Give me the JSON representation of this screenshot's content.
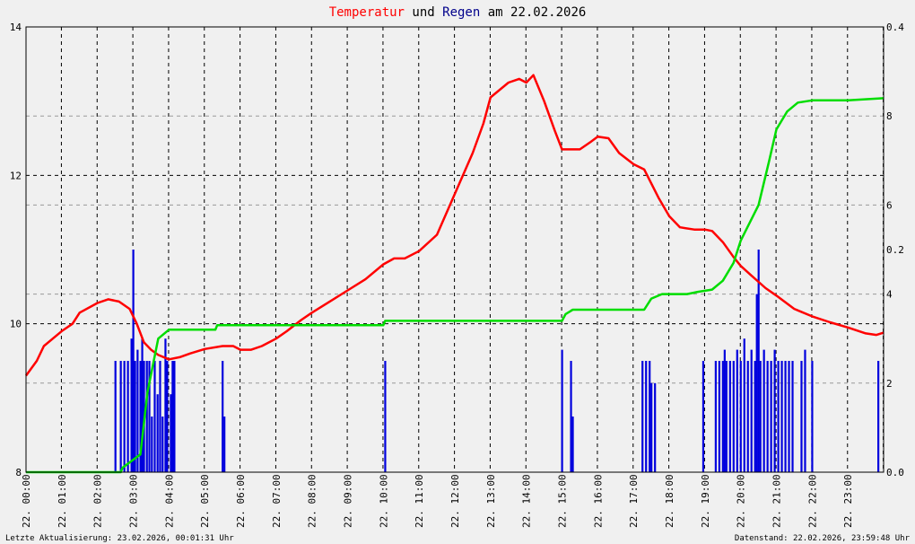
{
  "title": {
    "part1": "Temperatur",
    "part2": " und ",
    "part3": "Regen",
    "part4": " am 22.02.2026",
    "color_temp": "#ff0000",
    "color_rain": "#00008b",
    "color_text": "#000000"
  },
  "footer": {
    "left": "Letzte Aktualisierung: 23.02.2026, 00:01:31 Uhr",
    "right": "Datenstand: 22.02.2026, 23:59:48 Uhr"
  },
  "chart_data": {
    "type": "line",
    "x_unit": "hour of day",
    "x_ticks": [
      "22. 00:00",
      "22. 01:00",
      "22. 02:00",
      "22. 03:00",
      "22. 04:00",
      "22. 05:00",
      "22. 06:00",
      "22. 07:00",
      "22. 08:00",
      "22. 09:00",
      "22. 10:00",
      "22. 11:00",
      "22. 12:00",
      "22. 13:00",
      "22. 14:00",
      "22. 15:00",
      "22. 16:00",
      "22. 17:00",
      "22. 18:00",
      "22. 19:00",
      "22. 20:00",
      "22. 21:00",
      "22. 22:00",
      "22. 23:00"
    ],
    "xlim": [
      0,
      24
    ],
    "y_left": {
      "ylim": [
        8,
        14
      ],
      "ticks": [
        "8",
        "10",
        "12",
        "14"
      ]
    },
    "y_right_outer": {
      "ylim": [
        0,
        0.4
      ],
      "ticks": [
        "0.0",
        "0.2",
        "0.4"
      ]
    },
    "y_right_inner": {
      "ylim": [
        0,
        10
      ],
      "ticks": [
        "2",
        "4",
        "6",
        "8"
      ]
    },
    "grid": true,
    "series": [
      {
        "axis": "left",
        "color": "#ff0000",
        "points": [
          [
            0,
            9.3
          ],
          [
            0.3,
            9.5
          ],
          [
            0.5,
            9.7
          ],
          [
            1,
            9.9
          ],
          [
            1.3,
            10.0
          ],
          [
            1.5,
            10.15
          ],
          [
            2,
            10.28
          ],
          [
            2.3,
            10.33
          ],
          [
            2.6,
            10.3
          ],
          [
            2.9,
            10.2
          ],
          [
            3.1,
            10.0
          ],
          [
            3.3,
            9.75
          ],
          [
            3.5,
            9.65
          ],
          [
            3.7,
            9.58
          ],
          [
            4,
            9.52
          ],
          [
            4.3,
            9.55
          ],
          [
            4.6,
            9.6
          ],
          [
            5,
            9.66
          ],
          [
            5.5,
            9.7
          ],
          [
            5.8,
            9.7
          ],
          [
            6,
            9.65
          ],
          [
            6.3,
            9.65
          ],
          [
            6.6,
            9.7
          ],
          [
            7,
            9.8
          ],
          [
            7.3,
            9.9
          ],
          [
            7.7,
            10.05
          ],
          [
            8,
            10.15
          ],
          [
            8.5,
            10.3
          ],
          [
            9,
            10.45
          ],
          [
            9.5,
            10.6
          ],
          [
            10,
            10.8
          ],
          [
            10.3,
            10.88
          ],
          [
            10.6,
            10.88
          ],
          [
            11,
            10.98
          ],
          [
            11.5,
            11.2
          ],
          [
            12,
            11.75
          ],
          [
            12.5,
            12.3
          ],
          [
            12.8,
            12.7
          ],
          [
            13,
            13.05
          ],
          [
            13.5,
            13.25
          ],
          [
            13.8,
            13.3
          ],
          [
            14,
            13.25
          ],
          [
            14.2,
            13.35
          ],
          [
            14.5,
            13.0
          ],
          [
            14.8,
            12.6
          ],
          [
            15,
            12.35
          ],
          [
            15.5,
            12.35
          ],
          [
            15.8,
            12.45
          ],
          [
            16,
            12.52
          ],
          [
            16.3,
            12.5
          ],
          [
            16.6,
            12.3
          ],
          [
            17,
            12.15
          ],
          [
            17.3,
            12.08
          ],
          [
            17.7,
            11.7
          ],
          [
            18,
            11.45
          ],
          [
            18.3,
            11.3
          ],
          [
            18.7,
            11.27
          ],
          [
            19,
            11.27
          ],
          [
            19.2,
            11.25
          ],
          [
            19.5,
            11.1
          ],
          [
            19.8,
            10.9
          ],
          [
            20,
            10.78
          ],
          [
            20.3,
            10.65
          ],
          [
            20.7,
            10.48
          ],
          [
            21,
            10.38
          ],
          [
            21.5,
            10.2
          ],
          [
            22,
            10.1
          ],
          [
            22.5,
            10.02
          ],
          [
            23,
            9.95
          ],
          [
            23.5,
            9.87
          ],
          [
            23.8,
            9.85
          ],
          [
            24,
            9.88
          ]
        ]
      },
      {
        "axis": "right_inner",
        "color": "#00dd00",
        "points": [
          [
            0,
            0
          ],
          [
            2.65,
            0
          ],
          [
            2.7,
            0.1
          ],
          [
            3.2,
            0.4
          ],
          [
            3.4,
            1.8
          ],
          [
            3.7,
            3.0
          ],
          [
            4.0,
            3.2
          ],
          [
            4.5,
            3.2
          ],
          [
            5.3,
            3.2
          ],
          [
            5.35,
            3.3
          ],
          [
            7,
            3.3
          ],
          [
            8,
            3.3
          ],
          [
            9,
            3.3
          ],
          [
            10,
            3.3
          ],
          [
            10.05,
            3.4
          ],
          [
            12,
            3.4
          ],
          [
            14,
            3.4
          ],
          [
            15.0,
            3.4
          ],
          [
            15.1,
            3.55
          ],
          [
            15.3,
            3.65
          ],
          [
            16,
            3.65
          ],
          [
            17.0,
            3.65
          ],
          [
            17.3,
            3.65
          ],
          [
            17.5,
            3.9
          ],
          [
            17.8,
            4.0
          ],
          [
            18.5,
            4.0
          ],
          [
            18.8,
            4.05
          ],
          [
            19.2,
            4.1
          ],
          [
            19.5,
            4.3
          ],
          [
            19.8,
            4.7
          ],
          [
            20,
            5.2
          ],
          [
            20.5,
            6.0
          ],
          [
            20.8,
            7.0
          ],
          [
            21,
            7.7
          ],
          [
            21.3,
            8.1
          ],
          [
            21.6,
            8.3
          ],
          [
            22,
            8.35
          ],
          [
            23,
            8.35
          ],
          [
            24,
            8.4
          ]
        ]
      },
      {
        "axis": "right_outer",
        "color": "#0000dd",
        "bar_series": true,
        "points": [
          [
            2.5,
            0.1
          ],
          [
            2.65,
            0.1
          ],
          [
            2.75,
            0.1
          ],
          [
            2.85,
            0.1
          ],
          [
            2.95,
            0.12
          ],
          [
            3.0,
            0.2
          ],
          [
            3.05,
            0.1
          ],
          [
            3.12,
            0.11
          ],
          [
            3.2,
            0.1
          ],
          [
            3.25,
            0.12
          ],
          [
            3.3,
            0.1
          ],
          [
            3.38,
            0.1
          ],
          [
            3.45,
            0.1
          ],
          [
            3.52,
            0.05
          ],
          [
            3.6,
            0.1
          ],
          [
            3.68,
            0.07
          ],
          [
            3.75,
            0.1
          ],
          [
            3.82,
            0.05
          ],
          [
            3.9,
            0.12
          ],
          [
            3.95,
            0.1
          ],
          [
            4.05,
            0.07
          ],
          [
            4.1,
            0.1
          ],
          [
            4.15,
            0.1
          ],
          [
            5.5,
            0.1
          ],
          [
            5.55,
            0.05
          ],
          [
            10.05,
            0.1
          ],
          [
            15.0,
            0.11
          ],
          [
            15.25,
            0.1
          ],
          [
            15.3,
            0.05
          ],
          [
            17.25,
            0.1
          ],
          [
            17.35,
            0.1
          ],
          [
            17.45,
            0.1
          ],
          [
            17.5,
            0.08
          ],
          [
            17.6,
            0.08
          ],
          [
            18.95,
            0.1
          ],
          [
            19.3,
            0.1
          ],
          [
            19.4,
            0.1
          ],
          [
            19.5,
            0.1
          ],
          [
            19.55,
            0.11
          ],
          [
            19.6,
            0.1
          ],
          [
            19.7,
            0.1
          ],
          [
            19.8,
            0.1
          ],
          [
            19.9,
            0.11
          ],
          [
            20.0,
            0.1
          ],
          [
            20.1,
            0.12
          ],
          [
            20.2,
            0.1
          ],
          [
            20.3,
            0.11
          ],
          [
            20.4,
            0.1
          ],
          [
            20.45,
            0.16
          ],
          [
            20.5,
            0.2
          ],
          [
            20.55,
            0.1
          ],
          [
            20.65,
            0.11
          ],
          [
            20.75,
            0.1
          ],
          [
            20.85,
            0.1
          ],
          [
            20.95,
            0.11
          ],
          [
            21.05,
            0.1
          ],
          [
            21.15,
            0.1
          ],
          [
            21.25,
            0.1
          ],
          [
            21.35,
            0.1
          ],
          [
            21.45,
            0.1
          ],
          [
            21.7,
            0.1
          ],
          [
            21.8,
            0.11
          ],
          [
            22.0,
            0.1
          ],
          [
            23.85,
            0.1
          ]
        ]
      }
    ]
  }
}
